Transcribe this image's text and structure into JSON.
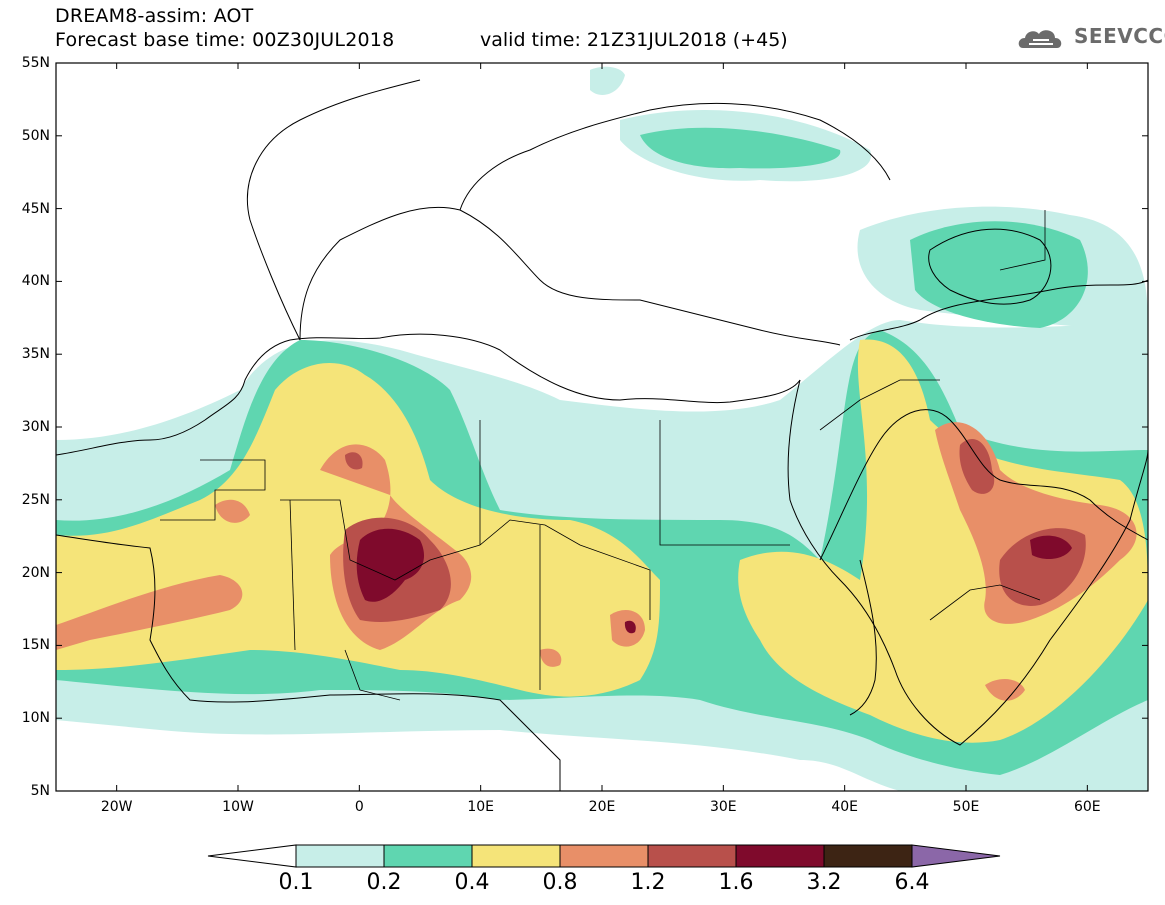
{
  "header": {
    "model_field": "DREAM8-assim: AOT",
    "base_time": "Forecast base time: 00Z30JUL2018",
    "valid_time": "valid time: 21Z31JUL2018 (+45)"
  },
  "logo": {
    "text": "SEEVCCC",
    "icon": "cloud-icon"
  },
  "map": {
    "lat_labels": [
      "55N",
      "50N",
      "45N",
      "40N",
      "35N",
      "30N",
      "25N",
      "20N",
      "15N",
      "10N",
      "5N"
    ],
    "lon_labels": [
      "20W",
      "10W",
      "0",
      "10E",
      "20E",
      "30E",
      "40E",
      "50E",
      "60E"
    ],
    "lat_range": [
      5,
      55
    ],
    "lon_range": [
      -25,
      65
    ]
  },
  "colorbar": {
    "labels": [
      "0.1",
      "0.2",
      "0.4",
      "0.8",
      "1.2",
      "1.6",
      "3.2",
      "6.4"
    ],
    "colors": [
      "#ffffff",
      "#c7eee8",
      "#5fd6b0",
      "#f5e479",
      "#e88f68",
      "#b8504b",
      "#7f0a2c",
      "#3d2414",
      "#8b67a8"
    ]
  }
}
